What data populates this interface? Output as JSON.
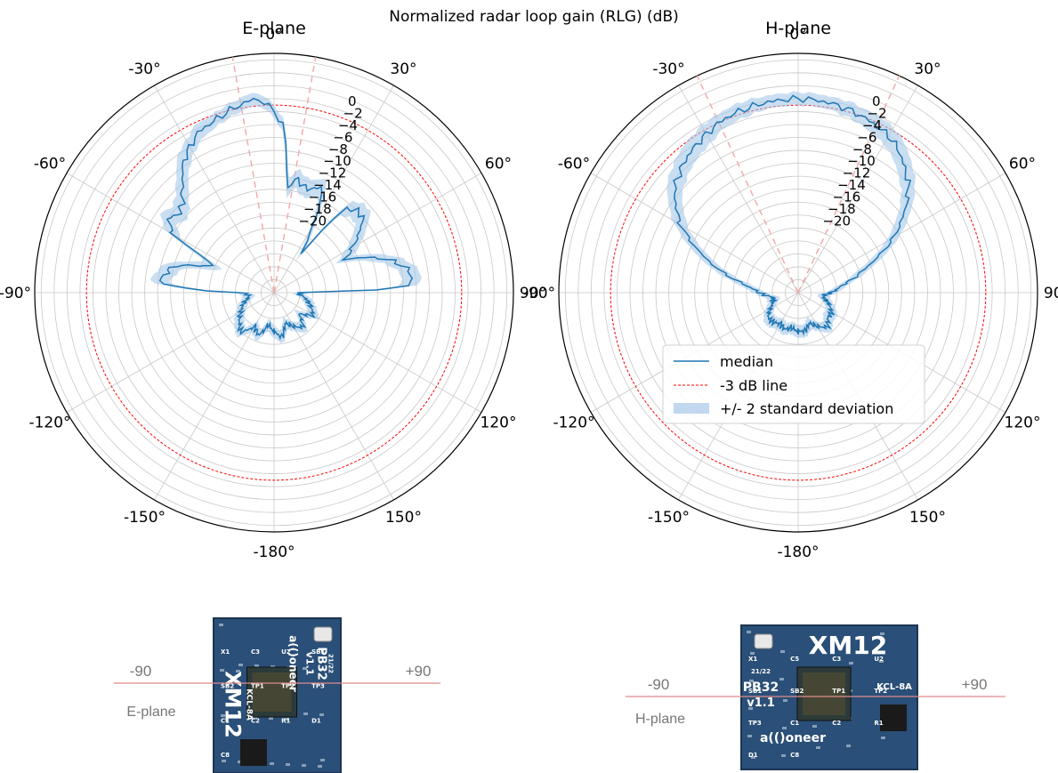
{
  "figure": {
    "suptitle": "Normalized radar loop gain (RLG) (dB)"
  },
  "colors": {
    "median": "#1f77b4",
    "band": "#a6c8e8",
    "threshold_line": "#ff0000",
    "beam_edges": "#f4a6a6",
    "grid": "#c8c8c8",
    "board_blue": "#2a4f78",
    "board_dark": "#1d3552",
    "axis_line": "#e08a8a"
  },
  "chart_data": [
    {
      "type": "polar-line",
      "title": "E-plane",
      "angle_tick_labels": [
        "0°",
        "30°",
        "60°",
        "90°",
        "120°",
        "150°",
        "-180°",
        "-150°",
        "-120°",
        "-90°",
        "-60°",
        "-30°"
      ],
      "radial_tick_labels": [
        "0",
        "−2",
        "−4",
        "−6",
        "−8",
        "−10",
        "−12",
        "−14",
        "−16",
        "−18",
        "−20"
      ],
      "rlim_db": [
        -32,
        5
      ],
      "grid": true,
      "threshold_db": -3,
      "beam_edge_angles_deg": [
        -10,
        10
      ],
      "median": {
        "angle_deg": [
          -180,
          -170,
          -160,
          -150,
          -140,
          -130,
          -120,
          -110,
          -100,
          -95,
          -90,
          -88,
          -85,
          -80,
          -75,
          -70,
          -65,
          -60,
          -55,
          -50,
          -45,
          -40,
          -35,
          -30,
          -25,
          -20,
          -15,
          -10,
          -7,
          -5,
          -3,
          0,
          3,
          5,
          7,
          10,
          12,
          15,
          20,
          25,
          30,
          35,
          40,
          45,
          50,
          55,
          60,
          65,
          70,
          75,
          80,
          85,
          88,
          90,
          95,
          100,
          110,
          120,
          130,
          140,
          150,
          160,
          170,
          180
        ],
        "rlg_db": [
          -26,
          -27,
          -25,
          -26,
          -24,
          -25,
          -26,
          -27,
          -28,
          -28,
          -27,
          -20,
          -14,
          -15,
          -16,
          -20,
          -22,
          -14,
          -12,
          -13,
          -12,
          -10,
          -7.5,
          -6,
          -4.5,
          -4,
          -3.2,
          -2.5,
          -2,
          -2,
          -2.5,
          -4,
          -6,
          -10,
          -16,
          -14.5,
          -14,
          -15,
          -15,
          -14,
          -20,
          -25,
          -15,
          -14,
          -14,
          -16,
          -18,
          -20,
          -16,
          -13,
          -11,
          -10.5,
          -12,
          -28,
          -28,
          -27,
          -26,
          -25,
          -27,
          -25,
          -26,
          -27,
          -25,
          -26
        ]
      },
      "band_half_width_db": [
        1,
        1,
        1,
        1,
        1,
        1,
        1,
        1,
        1,
        1,
        1,
        1.5,
        1.5,
        1.5,
        1.5,
        2,
        1.5,
        1.5,
        1.5,
        1.5,
        1.5,
        1.5,
        1.5,
        1.2,
        1.2,
        1,
        1,
        1,
        1,
        1,
        1,
        1,
        1,
        1.5,
        1.5,
        1.5,
        1.5,
        1.5,
        1.5,
        1.5,
        1.5,
        1.5,
        1.5,
        1.5,
        1.5,
        1.5,
        1.5,
        1.5,
        1.5,
        1.5,
        1.5,
        1.5,
        1.5,
        1,
        1,
        1,
        1,
        1,
        1,
        1,
        1,
        1,
        1,
        1
      ]
    },
    {
      "type": "polar-line",
      "title": "H-plane",
      "angle_tick_labels": [
        "0°",
        "30°",
        "60°",
        "90°",
        "120°",
        "150°",
        "-180°",
        "-150°",
        "-120°",
        "-90°",
        "-60°",
        "-30°"
      ],
      "radial_tick_labels": [
        "0",
        "−2",
        "−4",
        "−6",
        "−8",
        "−10",
        "−12",
        "−14",
        "−16",
        "−18",
        "−20"
      ],
      "rlim_db": [
        -32,
        5
      ],
      "grid": true,
      "threshold_db": -3,
      "beam_edge_angles_deg": [
        -25,
        25
      ],
      "legend": {
        "location": "lower-right",
        "entries": [
          "median",
          "-3 dB line",
          "+/- 2 standard deviation"
        ]
      },
      "median": {
        "angle_deg": [
          -180,
          -170,
          -160,
          -150,
          -140,
          -130,
          -120,
          -110,
          -100,
          -95,
          -90,
          -85,
          -80,
          -75,
          -70,
          -65,
          -60,
          -55,
          -50,
          -45,
          -40,
          -35,
          -30,
          -25,
          -20,
          -15,
          -10,
          -5,
          0,
          5,
          10,
          15,
          20,
          25,
          30,
          35,
          40,
          45,
          50,
          55,
          60,
          65,
          70,
          75,
          80,
          85,
          90,
          95,
          100,
          110,
          120,
          130,
          140,
          150,
          160,
          170,
          180
        ],
        "rlg_db": [
          -26,
          -26.5,
          -26,
          -26.5,
          -26,
          -26,
          -27,
          -28,
          -28,
          -27,
          -26,
          -25,
          -23,
          -20,
          -17,
          -14,
          -11,
          -9,
          -7,
          -6,
          -5,
          -4.3,
          -3.7,
          -3,
          -2.6,
          -2.4,
          -2.2,
          -2.1,
          -2,
          -2.1,
          -2.3,
          -2.6,
          -3,
          -3.5,
          -4,
          -5,
          -6.5,
          -8,
          -10,
          -12.5,
          -15,
          -18,
          -21,
          -23,
          -25,
          -26,
          -27,
          -28,
          -28,
          -27,
          -26,
          -26,
          -25,
          -26,
          -27,
          -26,
          -26
        ]
      },
      "band_half_width_db": [
        1,
        1,
        1,
        1,
        1,
        1,
        1,
        1,
        1,
        1,
        1,
        1.2,
        1.5,
        1.5,
        1.5,
        1.5,
        1.5,
        1.5,
        1.5,
        1.5,
        1.5,
        1.5,
        1.5,
        1.2,
        1.2,
        1.2,
        1,
        1,
        1,
        1,
        1,
        1.2,
        1.2,
        1.5,
        1.5,
        1.5,
        1.5,
        1.5,
        1.5,
        1.5,
        1.5,
        1.5,
        1.5,
        1.2,
        1,
        1,
        1,
        1,
        1,
        1,
        1,
        1,
        1,
        1,
        1,
        1,
        1
      ]
    }
  ],
  "photos": [
    {
      "plane_label": "E-plane",
      "minus_label": "-90",
      "plus_label": "+90",
      "board": {
        "model": "XM12",
        "variant": "PB32",
        "version": "v1.1",
        "date": "21/22",
        "brand": "a(()oneer",
        "part": "KCL-8A",
        "pads": [
          "X1",
          "C3",
          "U2",
          "SB1",
          "SB2",
          "TP1",
          "TP2",
          "TP3",
          "C1",
          "C2",
          "R1",
          "D1",
          "C8"
        ]
      }
    },
    {
      "plane_label": "H-plane",
      "minus_label": "-90",
      "plus_label": "+90",
      "board": {
        "model": "XM12",
        "variant": "PB32",
        "version": "v1.1",
        "date": "21/22",
        "brand": "a(()oneer",
        "part": "KCL-8A",
        "pads": [
          "X1",
          "C5",
          "C3",
          "U2",
          "SB1",
          "SB2",
          "TP1",
          "TP2",
          "TP3",
          "C1",
          "C2",
          "R1",
          "D1",
          "C8"
        ]
      }
    }
  ]
}
